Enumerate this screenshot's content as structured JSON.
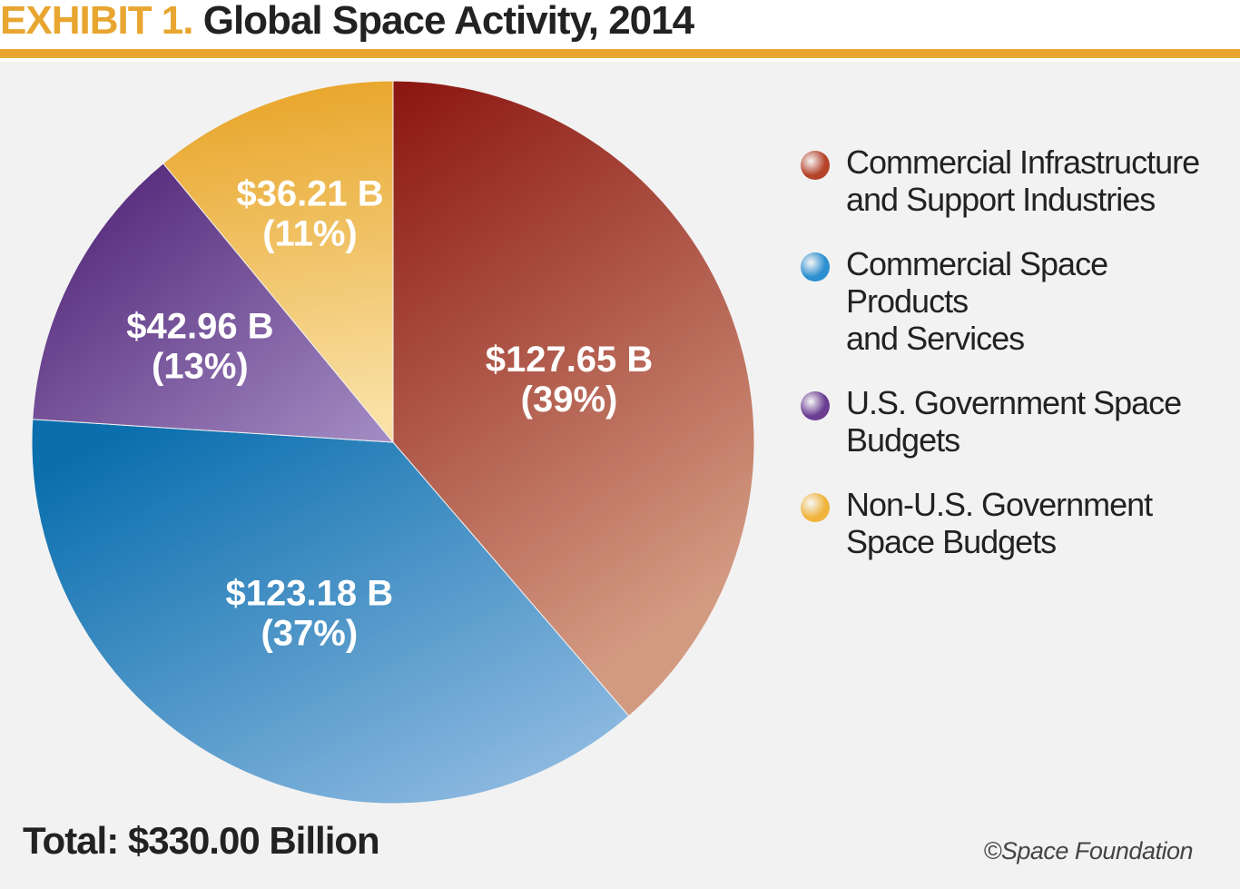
{
  "header": {
    "exhibit_label": "EXHIBIT 1.",
    "title": "Global Space Activity, 2014"
  },
  "colors": {
    "accent": "#e8a631",
    "panel_background": "#f2f2f2",
    "text": "#222222"
  },
  "chart_data": {
    "type": "pie",
    "title": "Global Space Activity, 2014",
    "total_label": "Total: $330.00 Billion",
    "total_billions": 330.0,
    "start_angle_degrees": 0,
    "direction": "clockwise",
    "slices": [
      {
        "name": "Commercial Infrastructure and Support Industries",
        "value_billions": 127.65,
        "value_label": "$127.65 B",
        "percent": 39,
        "percent_label": "(39%)",
        "color_dark": "#8b1510",
        "color_light": "#d39a82",
        "legend_color": "#b4432a"
      },
      {
        "name": "Commercial Space Products and Services",
        "value_billions": 123.18,
        "value_label": "$123.18 B",
        "percent": 37,
        "percent_label": "(37%)",
        "color_dark": "#0b6fae",
        "color_light": "#9cc2e6",
        "legend_color": "#2b8fd0"
      },
      {
        "name": "U.S. Government Space Budgets",
        "value_billions": 42.96,
        "value_label": "$42.96 B",
        "percent": 13,
        "percent_label": "(13%)",
        "color_dark": "#4a1c71",
        "color_light": "#a48dc4",
        "legend_color": "#6a3d92"
      },
      {
        "name": "Non-U.S. Government Space Budgets",
        "value_billions": 36.21,
        "value_label": "$36.21 B",
        "percent": 11,
        "percent_label": "(11%)",
        "color_dark": "#e7a223",
        "color_light": "#f9e0a4",
        "legend_color": "#f0b43c"
      }
    ]
  },
  "legend": {
    "items": [
      {
        "line1": "Commercial Infrastructure",
        "line2": "and Support Industries",
        "color": "#b4432a"
      },
      {
        "line1": "Commercial Space Products",
        "line2": "and Services",
        "color": "#2b8fd0"
      },
      {
        "line1": "U.S. Government Space",
        "line2": "Budgets",
        "color": "#6a3d92"
      },
      {
        "line1": "Non-U.S. Government",
        "line2": "Space Budgets",
        "color": "#f0b43c"
      }
    ]
  },
  "footer": {
    "total": "Total: $330.00 Billion",
    "credit": "©Space Foundation"
  }
}
